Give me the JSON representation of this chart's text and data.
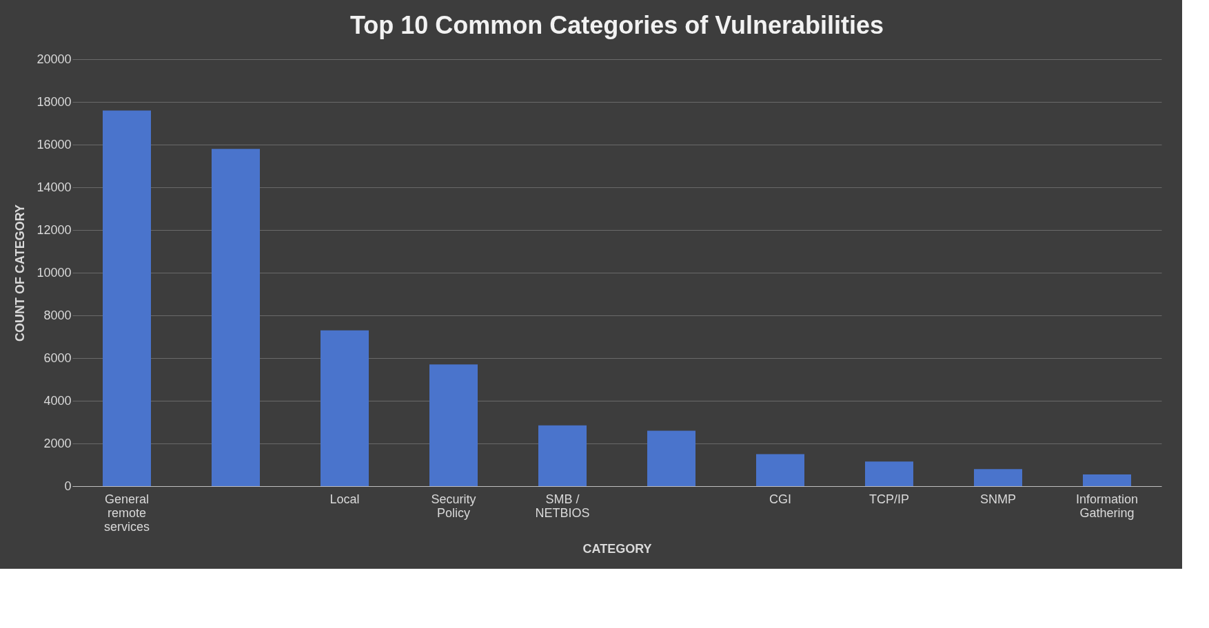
{
  "chart_data": {
    "type": "bar",
    "title": "Top 10 Common Categories of Vulnerabilities",
    "xlabel": "CATEGORY",
    "ylabel": "COUNT OF CATEGORY",
    "categories": [
      "General remote services",
      null,
      "Local",
      "Security Policy",
      "SMB / NETBIOS",
      null,
      "CGI",
      "TCP/IP",
      "SNMP",
      "Information Gathering"
    ],
    "values": [
      17600,
      15800,
      7300,
      5700,
      2850,
      2600,
      1500,
      1150,
      800,
      550
    ],
    "color": "#4a74cc",
    "ylim": [
      0,
      20000
    ],
    "yticks": [
      0,
      2000,
      4000,
      6000,
      8000,
      10000,
      12000,
      14000,
      16000,
      18000,
      20000
    ],
    "grid": "y"
  }
}
